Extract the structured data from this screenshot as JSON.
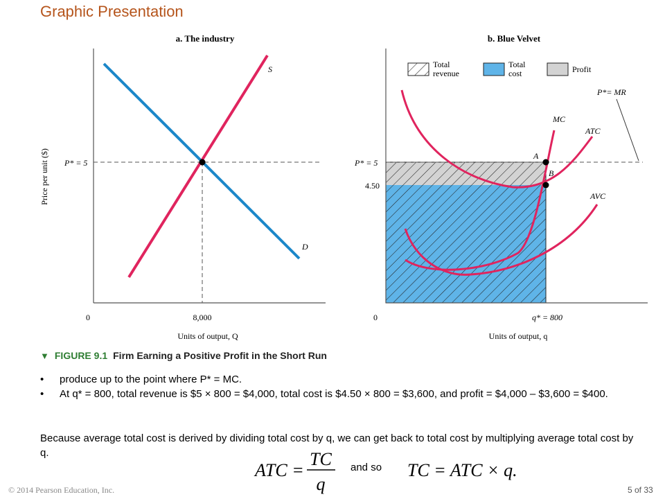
{
  "slide": {
    "title": "Graphic Presentation",
    "copyright": "© 2014 Pearson Education, Inc.",
    "page": "5 of 33"
  },
  "panel_a": {
    "title": "a. The industry",
    "ylabel": "Price per unit ($)",
    "xlabel": "Units of output, Q",
    "price_label": "P* = 5",
    "origin": "0",
    "q_label": "8,000",
    "supply_label": "S",
    "demand_label": "D"
  },
  "panel_b": {
    "title": "b. Blue Velvet",
    "legend": {
      "total_revenue_1": "Total",
      "total_revenue_2": "revenue",
      "total_cost_1": "Total",
      "total_cost_2": "cost",
      "profit": "Profit"
    },
    "price_label": "P* = 5",
    "atc_value": "4.50",
    "origin": "0",
    "q_label": "q* = 800",
    "xlabel": "Units of output, q",
    "pmr_label": "P*= MR",
    "mc_label": "MC",
    "atc_label": "ATC",
    "avc_label": "AVC",
    "point_a": "A",
    "point_b": "B"
  },
  "colors": {
    "title": "#b5541b",
    "supply": "#e0245e",
    "demand": "#1b87c9",
    "total_cost_fill": "#5fb4e8",
    "profit_fill": "#d3d3d3",
    "caption_accent": "#2e7d32"
  },
  "caption": {
    "number": "FIGURE 9.1",
    "text": "Firm Earning a Positive Profit in the Short Run"
  },
  "bullets": [
    "produce up to the point where P* = MC.",
    "At q* = 800, total revenue is $5 × 800 = $4,000, total cost is $4.50 × 800 = $3,600, and profit = $4,000 – $3,600 = $400."
  ],
  "paragraph": "Because average total cost is derived by dividing total cost by q, we can get back to total cost by multiplying average total cost by q.",
  "formula": {
    "lhs": "ATC =",
    "numerator": "TC",
    "denominator": "q",
    "connector": "and so",
    "result": "TC = ATC × q."
  }
}
